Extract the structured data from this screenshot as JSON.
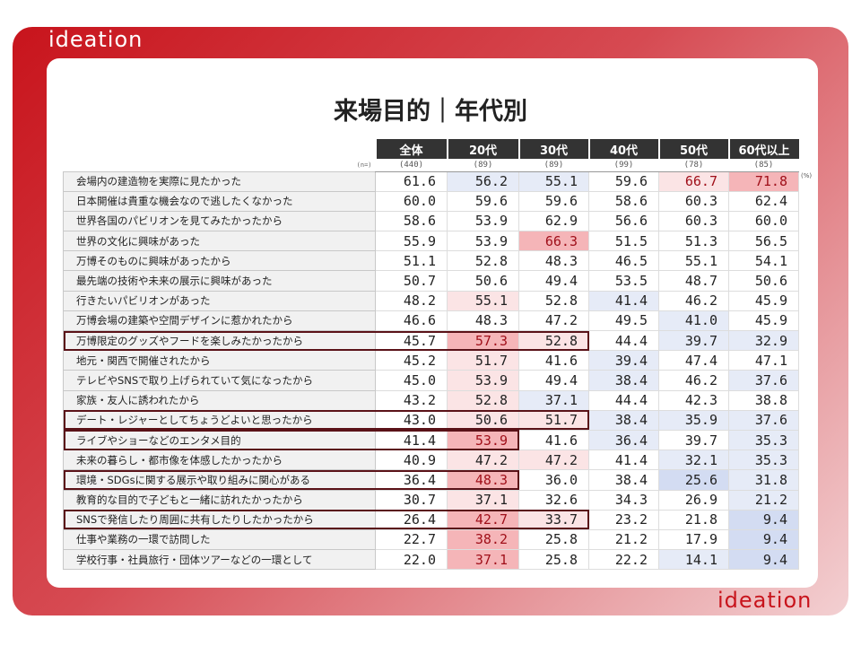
{
  "logo_text": "ideation",
  "title": "来場目的｜年代別",
  "unit": "(%)",
  "n_label": "(n=)",
  "colors": {
    "accent": "#c8141c",
    "header_bg": "#333333",
    "high": "#f5b5b8",
    "slightly_high": "#fbe4e5",
    "low": "#e6ebf7",
    "very_low": "#d3dcf2"
  },
  "columns": [
    "全体",
    "20代",
    "30代",
    "40代",
    "50代",
    "60代以上"
  ],
  "n": [
    "(440)",
    "(89)",
    "(89)",
    "(99)",
    "(78)",
    "(85)"
  ],
  "rows": [
    {
      "label": "会場内の建造物を実際に見たかった",
      "values": [
        "61.6",
        "56.2",
        "55.1",
        "59.6",
        "66.7",
        "71.8"
      ],
      "shade": [
        "",
        "b1",
        "b1",
        "",
        "r1t r1",
        "r2"
      ]
    },
    {
      "label": "日本開催は貴重な機会なので逃したくなかった",
      "values": [
        "60.0",
        "59.6",
        "59.6",
        "58.6",
        "60.3",
        "62.4"
      ],
      "shade": [
        "",
        "",
        "",
        "",
        "",
        ""
      ]
    },
    {
      "label": "世界各国のパビリオンを見てみたかったから",
      "values": [
        "58.6",
        "53.9",
        "62.9",
        "56.6",
        "60.3",
        "60.0"
      ],
      "shade": [
        "",
        "",
        "",
        "",
        "",
        ""
      ]
    },
    {
      "label": "世界の文化に興味があった",
      "values": [
        "55.9",
        "53.9",
        "66.3",
        "51.5",
        "51.3",
        "56.5"
      ],
      "shade": [
        "",
        "",
        "r2",
        "",
        "",
        ""
      ]
    },
    {
      "label": "万博そのものに興味があったから",
      "values": [
        "51.1",
        "52.8",
        "48.3",
        "46.5",
        "55.1",
        "54.1"
      ],
      "shade": [
        "",
        "",
        "",
        "",
        "",
        ""
      ]
    },
    {
      "label": "最先端の技術や未来の展示に興味があった",
      "values": [
        "50.7",
        "50.6",
        "49.4",
        "53.5",
        "48.7",
        "50.6"
      ],
      "shade": [
        "",
        "",
        "",
        "",
        "",
        ""
      ]
    },
    {
      "label": "行きたいパビリオンがあった",
      "values": [
        "48.2",
        "55.1",
        "52.8",
        "41.4",
        "46.2",
        "45.9"
      ],
      "shade": [
        "",
        "r1",
        "",
        "b1",
        "",
        ""
      ]
    },
    {
      "label": "万博会場の建築や空間デザインに惹かれたから",
      "values": [
        "46.6",
        "48.3",
        "47.2",
        "49.5",
        "41.0",
        "45.9"
      ],
      "shade": [
        "",
        "",
        "",
        "",
        "b1",
        ""
      ]
    },
    {
      "label": "万博限定のグッズやフードを楽しみたかったから",
      "values": [
        "45.7",
        "57.3",
        "52.8",
        "44.4",
        "39.7",
        "32.9"
      ],
      "shade": [
        "",
        "r2",
        "r1",
        "",
        "b1",
        "b1"
      ]
    },
    {
      "label": "地元・関西で開催されたから",
      "values": [
        "45.2",
        "51.7",
        "41.6",
        "39.4",
        "47.4",
        "47.1"
      ],
      "shade": [
        "",
        "r1",
        "",
        "b1",
        "",
        ""
      ]
    },
    {
      "label": "テレビやSNSで取り上げられていて気になったから",
      "values": [
        "45.0",
        "53.9",
        "49.4",
        "38.4",
        "46.2",
        "37.6"
      ],
      "shade": [
        "",
        "r1",
        "",
        "b1",
        "",
        "b1"
      ]
    },
    {
      "label": "家族・友人に誘われたから",
      "values": [
        "43.2",
        "52.8",
        "37.1",
        "44.4",
        "42.3",
        "38.8"
      ],
      "shade": [
        "",
        "r1",
        "b1",
        "",
        "",
        ""
      ]
    },
    {
      "label": "デート・レジャーとしてちょうどよいと思ったから",
      "values": [
        "43.0",
        "50.6",
        "51.7",
        "38.4",
        "35.9",
        "37.6"
      ],
      "shade": [
        "",
        "r1",
        "r1",
        "b1",
        "b1",
        "b1"
      ]
    },
    {
      "label": "ライブやショーなどのエンタメ目的",
      "values": [
        "41.4",
        "53.9",
        "41.6",
        "36.4",
        "39.7",
        "35.3"
      ],
      "shade": [
        "",
        "r2",
        "",
        "b1",
        "",
        "b1"
      ]
    },
    {
      "label": "未来の暮らし・都市像を体感したかったから",
      "values": [
        "40.9",
        "47.2",
        "47.2",
        "41.4",
        "32.1",
        "35.3"
      ],
      "shade": [
        "",
        "r1",
        "r1",
        "",
        "b1",
        "b1"
      ]
    },
    {
      "label": "環境・SDGsに関する展示や取り組みに関心がある",
      "values": [
        "36.4",
        "48.3",
        "36.0",
        "38.4",
        "25.6",
        "31.8"
      ],
      "shade": [
        "",
        "r2",
        "",
        "",
        "b2",
        "b1"
      ]
    },
    {
      "label": "教育的な目的で子どもと一緒に訪れたかったから",
      "values": [
        "30.7",
        "37.1",
        "32.6",
        "34.3",
        "26.9",
        "21.2"
      ],
      "shade": [
        "",
        "r1",
        "",
        "",
        "",
        "b1"
      ]
    },
    {
      "label": "SNSで発信したり周囲に共有したりしたかったから",
      "values": [
        "26.4",
        "42.7",
        "33.7",
        "23.2",
        "21.8",
        "9.4"
      ],
      "shade": [
        "",
        "r2",
        "r1",
        "",
        "",
        "b2"
      ]
    },
    {
      "label": "仕事や業務の一環で訪問した",
      "values": [
        "22.7",
        "38.2",
        "25.8",
        "21.2",
        "17.9",
        "9.4"
      ],
      "shade": [
        "",
        "r2",
        "",
        "",
        "",
        "b2"
      ]
    },
    {
      "label": "学校行事・社員旅行・団体ツアーなどの一環として",
      "values": [
        "22.0",
        "37.1",
        "25.8",
        "22.2",
        "14.1",
        "9.4"
      ],
      "shade": [
        "",
        "r2",
        "",
        "",
        "b1",
        "b2"
      ]
    }
  ],
  "highlight_boxes": [
    {
      "row": 9,
      "through": "30代"
    },
    {
      "row": 13,
      "through": "30代"
    },
    {
      "row": 14,
      "through": "20代"
    },
    {
      "row": 16,
      "through": "20代"
    },
    {
      "row": 18,
      "through": "30代"
    }
  ]
}
